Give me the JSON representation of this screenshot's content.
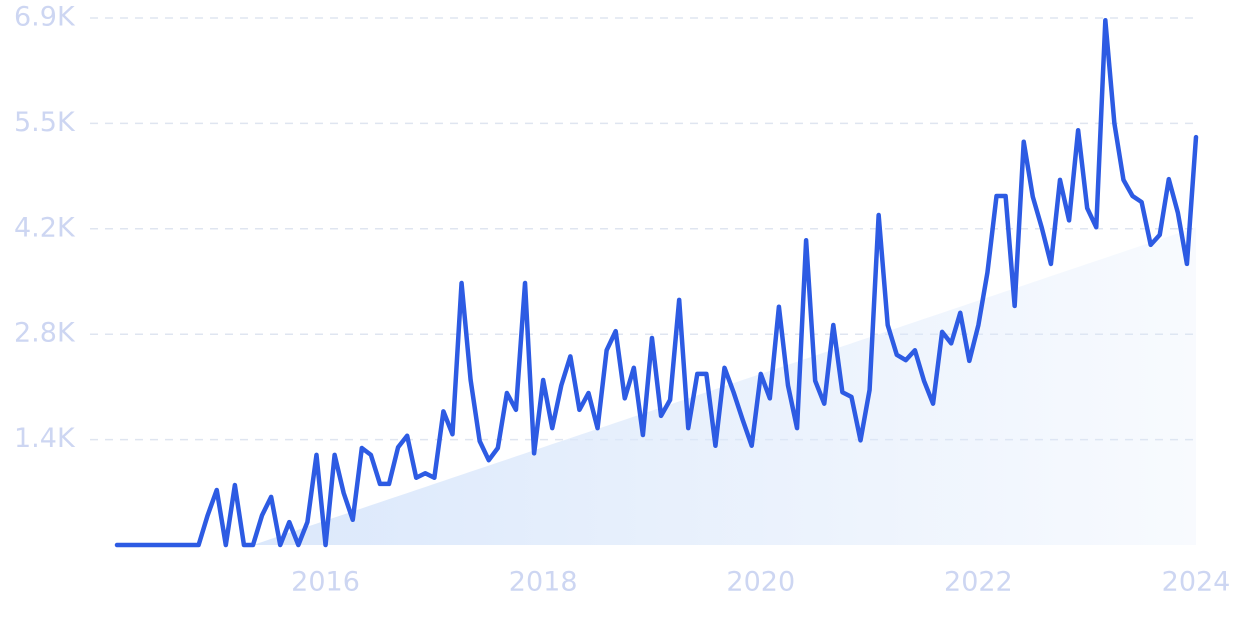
{
  "chart_data": {
    "type": "line",
    "categories": [
      null,
      null,
      null,
      null,
      null,
      null,
      null,
      null,
      null,
      null,
      null,
      null,
      null,
      null,
      null,
      null,
      null,
      null,
      null,
      null,
      null,
      null,
      null,
      "2016",
      null,
      null,
      null,
      null,
      null,
      null,
      null,
      null,
      null,
      null,
      null,
      null,
      null,
      null,
      null,
      null,
      null,
      null,
      null,
      null,
      null,
      null,
      null,
      "2018",
      null,
      null,
      null,
      null,
      null,
      null,
      null,
      null,
      null,
      null,
      null,
      null,
      null,
      null,
      null,
      null,
      null,
      null,
      null,
      null,
      null,
      null,
      null,
      "2020",
      null,
      null,
      null,
      null,
      null,
      null,
      null,
      null,
      null,
      null,
      null,
      null,
      null,
      null,
      null,
      null,
      null,
      null,
      null,
      null,
      null,
      null,
      null,
      "2022",
      null,
      null,
      null,
      null,
      null,
      null,
      null,
      null,
      null,
      null,
      null,
      null,
      null,
      null,
      null,
      null,
      null,
      null,
      null,
      null,
      null,
      null,
      null,
      "2024"
    ],
    "series": [
      {
        "color": "#2d5be3",
        "values": [
          0,
          0,
          0,
          0,
          0,
          0,
          0,
          0,
          0,
          0,
          390,
          720,
          0,
          785,
          0,
          0,
          390,
          630,
          0,
          300,
          0,
          300,
          1180,
          0,
          1180,
          680,
          330,
          1270,
          1180,
          800,
          800,
          1280,
          1430,
          880,
          940,
          880,
          1750,
          1450,
          3430,
          2160,
          1360,
          1110,
          1270,
          1990,
          1770,
          3430,
          1200,
          2160,
          1530,
          2090,
          2470,
          1770,
          1990,
          1530,
          2550,
          2800,
          1920,
          2320,
          1440,
          2710,
          1690,
          1900,
          3210,
          1530,
          2240,
          2240,
          1300,
          2320,
          2000,
          1640,
          1300,
          2240,
          1920,
          3120,
          2090,
          1530,
          3990,
          2150,
          1850,
          2880,
          2000,
          1940,
          1370,
          2030,
          4320,
          2880,
          2490,
          2420,
          2550,
          2150,
          1850,
          2790,
          2640,
          3040,
          2410,
          2880,
          3570,
          4570,
          4570,
          3130,
          5280,
          4560,
          4150,
          3680,
          4780,
          4250,
          5430,
          4410,
          4160,
          6870,
          5520,
          4780,
          4570,
          4490,
          3930,
          4060,
          4790,
          4350,
          3680,
          5340
        ]
      },
      {
        "color": "#dbe8fb",
        "area": true,
        "values": [
          null,
          null,
          null,
          null,
          null,
          null,
          null,
          null,
          null,
          null,
          null,
          null,
          null,
          null,
          null,
          0,
          40,
          80,
          120,
          160,
          200,
          240,
          280,
          320,
          360,
          400,
          440,
          480,
          520,
          560,
          600,
          640,
          680,
          720,
          760,
          800,
          840,
          880,
          920,
          960,
          1000,
          1040,
          1080,
          1120,
          1160,
          1200,
          1240,
          1280,
          1320,
          1360,
          1400,
          1440,
          1480,
          1520,
          1560,
          1600,
          1640,
          1680,
          1720,
          1760,
          1800,
          1840,
          1880,
          1920,
          1960,
          2000,
          2040,
          2080,
          2120,
          2160,
          2200,
          2240,
          2280,
          2320,
          2360,
          2400,
          2440,
          2480,
          2520,
          2560,
          2600,
          2640,
          2680,
          2720,
          2760,
          2800,
          2840,
          2880,
          2920,
          2960,
          3000,
          3040,
          3080,
          3120,
          3160,
          3200,
          3240,
          3280,
          3320,
          3360,
          3400,
          3440,
          3480,
          3520,
          3560,
          3600,
          3640,
          3680,
          3720,
          3760,
          3800,
          3840,
          3880,
          3920,
          3960,
          4000,
          4040,
          4080,
          4120,
          4160
        ]
      }
    ],
    "ylim": [
      0,
      6900
    ],
    "yticks": [
      {
        "value": 1380,
        "label": "1.4K"
      },
      {
        "value": 2760,
        "label": "2.8K"
      },
      {
        "value": 4140,
        "label": "4.2K"
      },
      {
        "value": 5520,
        "label": "5.5K"
      },
      {
        "value": 6900,
        "label": "6.9K"
      }
    ],
    "grid": true
  }
}
